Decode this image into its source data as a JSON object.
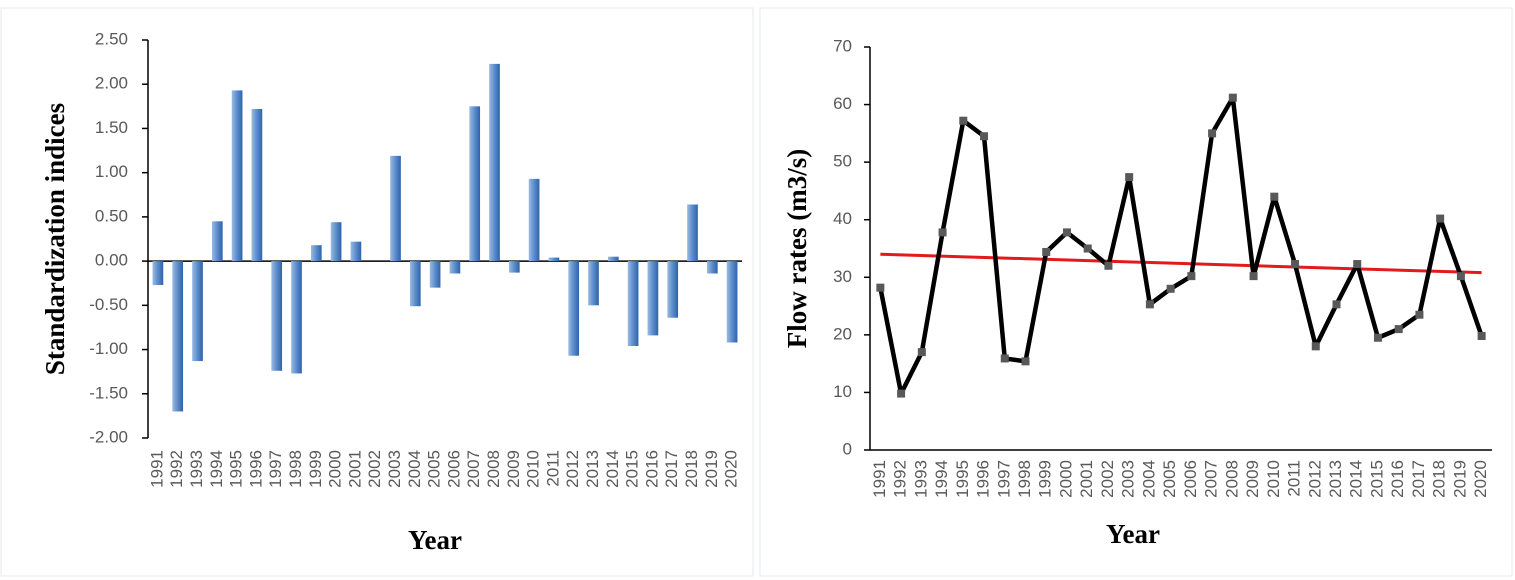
{
  "chart_data": [
    {
      "type": "bar",
      "y_label": "Standardization indices",
      "x_label": "Year",
      "color": "#4a7ebb",
      "categories": [
        "1991",
        "1992",
        "1993",
        "1994",
        "1995",
        "1996",
        "1997",
        "1998",
        "1999",
        "2000",
        "2001",
        "2002",
        "2003",
        "2004",
        "2005",
        "2006",
        "2007",
        "2008",
        "2009",
        "2010",
        "2011",
        "2012",
        "2013",
        "2014",
        "2015",
        "2016",
        "2017",
        "2018",
        "2019",
        "2020"
      ],
      "values": [
        -0.27,
        -1.7,
        -1.13,
        0.45,
        1.93,
        1.72,
        -1.24,
        -1.27,
        0.18,
        0.44,
        0.22,
        0.0,
        1.19,
        -0.51,
        -0.3,
        -0.14,
        1.75,
        2.23,
        -0.13,
        0.93,
        0.04,
        -1.07,
        -0.5,
        0.05,
        -0.96,
        -0.84,
        -0.64,
        0.64,
        -0.14,
        -0.92
      ],
      "ylim": [
        -2,
        2.5
      ],
      "yticks": [
        {
          "value": 2.5,
          "label": "2.50"
        },
        {
          "value": 2,
          "label": "2.00"
        },
        {
          "value": 1.5,
          "label": "1.50"
        },
        {
          "value": 1,
          "label": "1.00"
        },
        {
          "value": 0.5,
          "label": "0.50"
        },
        {
          "value": 0,
          "label": "0.00"
        },
        {
          "value": -0.5,
          "label": "-0.50"
        },
        {
          "value": -1,
          "label": "-1.00"
        },
        {
          "value": -1.5,
          "label": "-1.50"
        },
        {
          "value": -2,
          "label": "-2.00"
        }
      ]
    },
    {
      "type": "line",
      "y_label": "Flow rates (m3/s)",
      "x_label": "Year",
      "color": "#000000",
      "marker_color": "#595959",
      "categories": [
        "1991",
        "1992",
        "1993",
        "1994",
        "1995",
        "1996",
        "1997",
        "1998",
        "1999",
        "2000",
        "2001",
        "2002",
        "2003",
        "2004",
        "2005",
        "2006",
        "2007",
        "2008",
        "2009",
        "2010",
        "2011",
        "2012",
        "2013",
        "2014",
        "2015",
        "2016",
        "2017",
        "2018",
        "2019",
        "2020"
      ],
      "values": [
        28.2,
        9.8,
        17,
        37.8,
        57.2,
        54.5,
        15.9,
        15.4,
        34.4,
        37.8,
        35,
        32,
        47.4,
        25.3,
        28,
        30.2,
        55,
        61.2,
        30.2,
        44,
        32.3,
        18,
        25.3,
        32.3,
        19.5,
        21,
        23.5,
        40.2,
        30.2,
        19.8
      ],
      "trendline": {
        "start": 34.0,
        "end": 30.8,
        "color": "#e31a1c"
      },
      "ylim": [
        0,
        70
      ],
      "yticks": [
        0,
        10,
        20,
        30,
        40,
        50,
        60,
        70
      ]
    }
  ]
}
